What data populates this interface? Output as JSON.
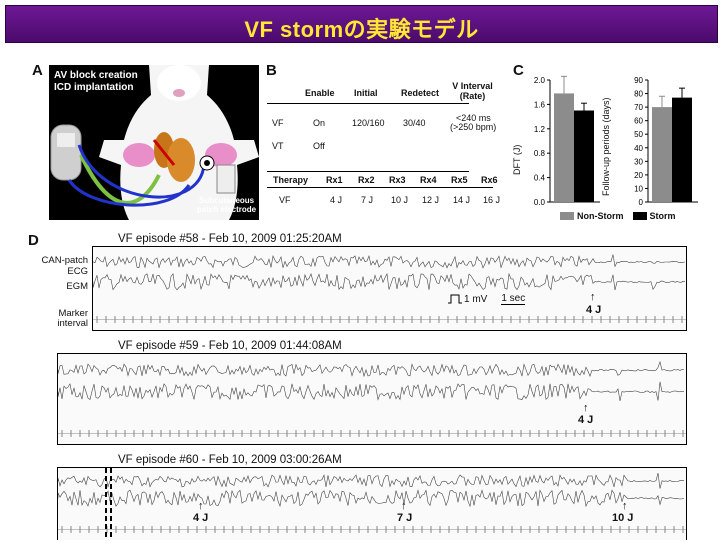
{
  "banner": {
    "title": "VF stormの実験モデル"
  },
  "panels": {
    "a": "A",
    "b": "B",
    "c": "C",
    "d": "D"
  },
  "panel_a": {
    "line1": "AV block creation",
    "line2": "ICD implantation",
    "patch1": "Subcutaneous",
    "patch2": "patch electrode"
  },
  "panel_b": {
    "headers": [
      "Enable",
      "Initial",
      "Redetect",
      "V Interval (Rate)"
    ],
    "vf": {
      "zone": "VF",
      "enable": "On",
      "initial": "120/160",
      "redetect": "30/40",
      "interval": "<240 ms",
      "rate": "(>250 bpm)"
    },
    "vt": {
      "zone": "VT",
      "enable": "Off"
    },
    "therapy_header": [
      "Therapy",
      "Rx1",
      "Rx2",
      "Rx3",
      "Rx4",
      "Rx5",
      "Rx6"
    ],
    "therapy_row": [
      "VF",
      "4 J",
      "7 J",
      "10 J",
      "12 J",
      "14 J",
      "16 J"
    ]
  },
  "chart_data": [
    {
      "type": "bar",
      "ylabel": "DFT (J)",
      "ylim": [
        0,
        2.0
      ],
      "yticks": [
        "0.0",
        "0.4",
        "0.8",
        "1.2",
        "1.6",
        "2.0"
      ],
      "series": [
        {
          "name": "Non-Storm",
          "color": "#8c8c8c",
          "values": [
            1.78
          ],
          "error": [
            0.28
          ]
        },
        {
          "name": "Storm",
          "color": "#000000",
          "values": [
            1.5
          ],
          "error": [
            0.12
          ]
        }
      ]
    },
    {
      "type": "bar",
      "ylabel": "Follow-up periods (days)",
      "ylim": [
        0,
        90
      ],
      "yticks": [
        "0",
        "10",
        "20",
        "30",
        "40",
        "50",
        "60",
        "70",
        "80",
        "90"
      ],
      "series": [
        {
          "name": "Non-Storm",
          "color": "#8c8c8c",
          "values": [
            70
          ],
          "error": [
            8
          ]
        },
        {
          "name": "Storm",
          "color": "#000000",
          "values": [
            77
          ],
          "error": [
            7
          ]
        }
      ]
    }
  ],
  "legend": {
    "non_storm": "Non-Storm",
    "storm": "Storm"
  },
  "episodes": [
    {
      "title": "VF episode #58 - Feb 10, 2009 01:25:20AM",
      "shocks": [
        "4 J"
      ]
    },
    {
      "title": "VF episode #59 - Feb 10, 2009 01:44:08AM",
      "shocks": [
        "4 J"
      ]
    },
    {
      "title": "VF episode #60 - Feb 10, 2009 03:00:26AM",
      "shocks": [
        "4 J",
        "7 J",
        "10 J"
      ]
    }
  ],
  "trace_labels": {
    "can": "CAN-patch",
    "ecg": "ECG",
    "egm": "EGM",
    "marker": "Marker",
    "interval": "interval"
  },
  "scale": {
    "mv": "1 mV",
    "sec": "1 sec"
  }
}
